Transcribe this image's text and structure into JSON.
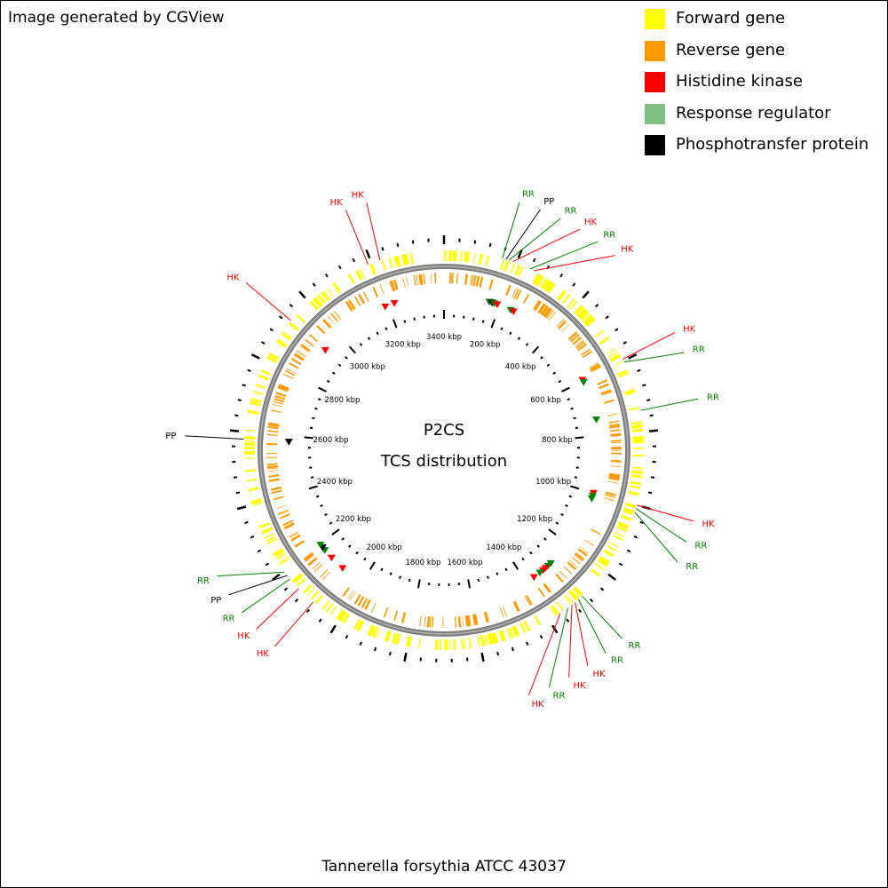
{
  "credit": "Image generated by CGView",
  "legend": [
    {
      "label": "Forward gene",
      "color": "#FFFF00",
      "icon": "forward-gene-swatch"
    },
    {
      "label": "Reverse gene",
      "color": "#FF9900",
      "icon": "reverse-gene-swatch"
    },
    {
      "label": "Histidine kinase",
      "color": "#FF0000",
      "icon": "histidine-kinase-swatch"
    },
    {
      "label": "Response regulator",
      "color": "#7FBF7F",
      "icon": "response-regulator-swatch"
    },
    {
      "label": "Phosphotransfer protein",
      "color": "#000000",
      "icon": "phosphotransfer-protein-swatch"
    }
  ],
  "map": {
    "center_title": "P2CS",
    "center_subtitle": "TCS distribution",
    "organism": "Tannerella forsythia ATCC 43037",
    "genome_kbp": 3400,
    "kbp_labels": [
      "200 kbp",
      "400 kbp",
      "600 kbp",
      "800 kbp",
      "1000 kbp",
      "1200 kbp",
      "1400 kbp",
      "1600 kbp",
      "1800 kbp",
      "2000 kbp",
      "2200 kbp",
      "2400 kbp",
      "2600 kbp",
      "2800 kbp",
      "3000 kbp",
      "3200 kbp",
      "3400 kbp"
    ],
    "colors": {
      "forward": "#FFFF00",
      "reverse": "#FF9900",
      "HK": "#FF0000",
      "RR": "#008000",
      "PP": "#000000",
      "backbone": "#808080"
    },
    "features": [
      {
        "label": "RR",
        "type": "RR",
        "kbp": 160
      },
      {
        "label": "PP",
        "type": "PP",
        "kbp": 170
      },
      {
        "label": "RR",
        "type": "RR",
        "kbp": 178
      },
      {
        "label": "HK",
        "type": "HK",
        "kbp": 189
      },
      {
        "label": "RR",
        "type": "RR",
        "kbp": 240
      },
      {
        "label": "HK",
        "type": "HK",
        "kbp": 251
      },
      {
        "label": "HK",
        "type": "HK",
        "kbp": 595
      },
      {
        "label": "RR",
        "type": "RR",
        "kbp": 604
      },
      {
        "label": "RR",
        "type": "RR",
        "kbp": 742
      },
      {
        "label": "HK",
        "type": "HK",
        "kbp": 1000
      },
      {
        "label": "RR",
        "type": "RR",
        "kbp": 1010
      },
      {
        "label": "RR",
        "type": "RR",
        "kbp": 1020
      },
      {
        "label": "RR",
        "type": "RR",
        "kbp": 1290
      },
      {
        "label": "RR",
        "type": "RR",
        "kbp": 1303
      },
      {
        "label": "HK",
        "type": "HK",
        "kbp": 1315
      },
      {
        "label": "HK",
        "type": "HK",
        "kbp": 1326
      },
      {
        "label": "RR",
        "type": "RR",
        "kbp": 1340
      },
      {
        "label": "HK",
        "type": "HK",
        "kbp": 1366
      },
      {
        "label": "HK",
        "type": "HK",
        "kbp": 2085
      },
      {
        "label": "HK",
        "type": "HK",
        "kbp": 2138
      },
      {
        "label": "RR",
        "type": "RR",
        "kbp": 2173
      },
      {
        "label": "PP",
        "type": "PP",
        "kbp": 2185
      },
      {
        "label": "RR",
        "type": "RR",
        "kbp": 2197
      },
      {
        "label": "PP",
        "type": "PP",
        "kbp": 2580
      },
      {
        "label": "HK",
        "type": "HK",
        "kbp": 2930
      },
      {
        "label": "HK",
        "type": "HK",
        "kbp": 3190
      },
      {
        "label": "HK",
        "type": "HK",
        "kbp": 3224
      }
    ]
  }
}
